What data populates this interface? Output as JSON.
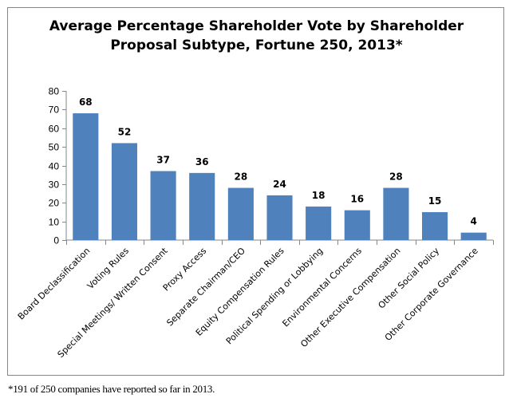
{
  "chart_data": {
    "type": "bar",
    "title": "Average Percentage Shareholder Vote by Shareholder Proposal Subtype, Fortune 250, 2013*",
    "title_lines": [
      "Average Percentage Shareholder  Vote by Shareholder",
      "Proposal  Subtype, Fortune 250, 2013*"
    ],
    "categories": [
      "Board Declassification",
      "Voting Rules",
      "Special Meetings/ Written Consent",
      "Proxy Access",
      "Separate Chairman/CEO",
      "Equity Compensation Rules",
      "Political Spending or Lobbying",
      "Environmental Concerns",
      "Other Executive Compensation",
      "Other Social Policy",
      "Other Corporate Governance"
    ],
    "values": [
      68,
      52,
      37,
      36,
      28,
      24,
      18,
      16,
      28,
      15,
      4
    ],
    "data_labels": [
      "68",
      "52",
      "37",
      "36",
      "28",
      "24",
      "18",
      "16",
      "28",
      "15",
      "4"
    ],
    "xlabel": "",
    "ylabel": "",
    "ylim": [
      0,
      80
    ],
    "yticks": [
      0,
      10,
      20,
      30,
      40,
      50,
      60,
      70,
      80
    ],
    "grid": false,
    "legend": "none",
    "bar_color": "#4f81bd",
    "footnote": "*191 of 250 companies have reported so far in 2013."
  }
}
